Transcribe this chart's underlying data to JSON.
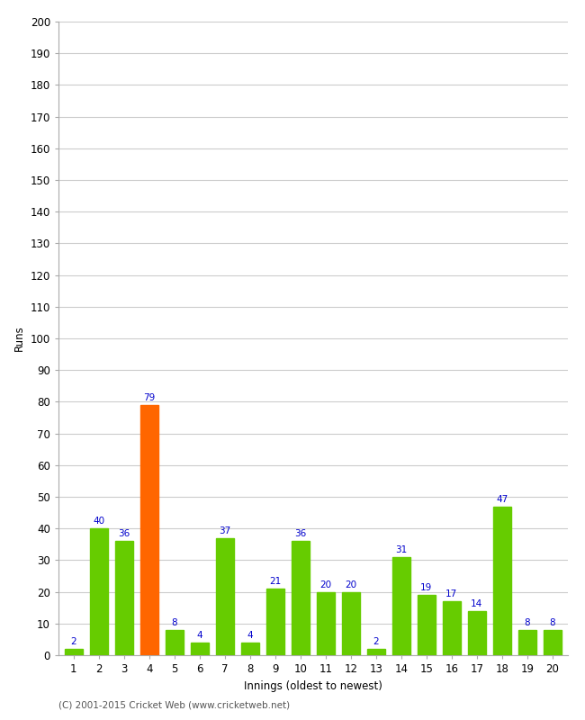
{
  "xlabel": "Innings (oldest to newest)",
  "ylabel": "Runs",
  "categories": [
    1,
    2,
    3,
    4,
    5,
    6,
    7,
    8,
    9,
    10,
    11,
    12,
    13,
    14,
    15,
    16,
    17,
    18,
    19,
    20
  ],
  "values": [
    2,
    40,
    36,
    79,
    8,
    4,
    37,
    4,
    21,
    36,
    20,
    20,
    2,
    31,
    19,
    17,
    14,
    47,
    8,
    8
  ],
  "bar_colors": [
    "#66cc00",
    "#66cc00",
    "#66cc00",
    "#ff6600",
    "#66cc00",
    "#66cc00",
    "#66cc00",
    "#66cc00",
    "#66cc00",
    "#66cc00",
    "#66cc00",
    "#66cc00",
    "#66cc00",
    "#66cc00",
    "#66cc00",
    "#66cc00",
    "#66cc00",
    "#66cc00",
    "#66cc00",
    "#66cc00"
  ],
  "ylim": [
    0,
    200
  ],
  "yticks": [
    0,
    10,
    20,
    30,
    40,
    50,
    60,
    70,
    80,
    90,
    100,
    110,
    120,
    130,
    140,
    150,
    160,
    170,
    180,
    190,
    200
  ],
  "label_color": "#0000cc",
  "label_fontsize": 7.5,
  "axis_fontsize": 8.5,
  "background_color": "#ffffff",
  "grid_color": "#cccccc",
  "footer": "(C) 2001-2015 Cricket Web (www.cricketweb.net)"
}
